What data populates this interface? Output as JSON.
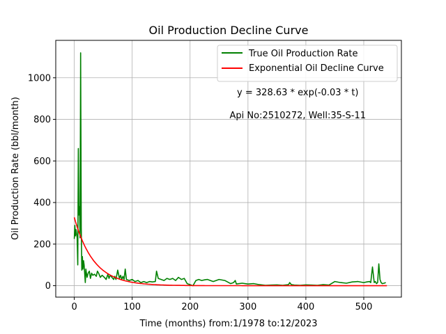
{
  "chart_data": {
    "type": "line",
    "title": "Oil Production Decline Curve",
    "xlabel": "Time (months) from:1/1978 to:12/2023",
    "ylabel": "Oil Production Rate (bbl/month)",
    "xlim": [
      -32,
      565
    ],
    "ylim": [
      -55,
      1180
    ],
    "xticks": [
      0,
      100,
      200,
      300,
      400,
      500
    ],
    "yticks": [
      0,
      200,
      400,
      600,
      800,
      1000
    ],
    "grid": true,
    "legend_position": "top-right",
    "annotations": [
      {
        "text": "y = 328.63 * exp(-0.03 * t)",
        "x": 386,
        "y": 915
      },
      {
        "text": "Api No:2510272, Well:35-S-11",
        "x": 386,
        "y": 805
      }
    ],
    "series": [
      {
        "name": "True Oil Production Rate",
        "color": "#008000",
        "x": [
          0,
          1,
          2,
          3,
          4,
          5,
          6,
          7,
          8,
          9,
          10,
          11,
          12,
          13,
          14,
          15,
          16,
          17,
          18,
          19,
          20,
          22,
          24,
          26,
          28,
          30,
          32,
          35,
          38,
          40,
          42,
          45,
          48,
          50,
          52,
          55,
          58,
          60,
          62,
          65,
          68,
          70,
          72,
          75,
          78,
          80,
          82,
          84,
          86,
          88,
          90,
          95,
          100,
          105,
          110,
          115,
          120,
          125,
          130,
          135,
          140,
          142,
          145,
          150,
          155,
          160,
          165,
          170,
          175,
          180,
          185,
          190,
          195,
          200,
          205,
          210,
          215,
          220,
          225,
          230,
          240,
          250,
          260,
          270,
          275,
          278,
          280,
          285,
          290,
          300,
          310,
          320,
          330,
          340,
          350,
          360,
          370,
          372,
          375,
          380,
          390,
          400,
          410,
          420,
          430,
          440,
          450,
          460,
          470,
          480,
          490,
          500,
          505,
          510,
          512,
          515,
          518,
          520,
          522,
          524,
          526,
          528,
          530,
          532,
          535,
          538
        ],
        "y": [
          225,
          290,
          240,
          270,
          250,
          230,
          100,
          660,
          340,
          380,
          230,
          1120,
          280,
          75,
          140,
          80,
          120,
          100,
          60,
          15,
          80,
          40,
          60,
          70,
          35,
          60,
          50,
          55,
          45,
          70,
          60,
          40,
          50,
          45,
          40,
          30,
          55,
          35,
          50,
          40,
          30,
          45,
          30,
          75,
          35,
          50,
          30,
          45,
          30,
          80,
          30,
          25,
          30,
          20,
          25,
          15,
          20,
          15,
          20,
          18,
          20,
          70,
          35,
          30,
          25,
          35,
          30,
          35,
          25,
          40,
          30,
          35,
          10,
          5,
          0,
          25,
          30,
          25,
          28,
          30,
          20,
          30,
          25,
          10,
          15,
          25,
          8,
          10,
          12,
          8,
          10,
          5,
          2,
          3,
          4,
          2,
          5,
          15,
          5,
          3,
          2,
          4,
          3,
          2,
          5,
          3,
          20,
          15,
          12,
          18,
          20,
          15,
          18,
          20,
          15,
          90,
          15,
          20,
          10,
          15,
          105,
          30,
          15,
          10,
          12,
          15
        ]
      },
      {
        "name": "Exponential Oil Decline Curve",
        "color": "#ff0000",
        "fn": {
          "a": 328.63,
          "b": 0.03,
          "x_start": 0,
          "x_end": 540
        }
      }
    ]
  }
}
